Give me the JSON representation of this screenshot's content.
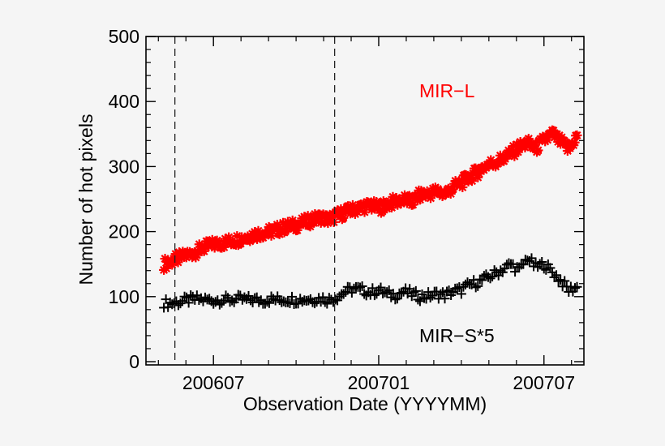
{
  "chart_data": {
    "type": "scatter",
    "title": "",
    "xlabel": "Observation Date (YYYYMM)",
    "ylabel": "Number of hot pixels",
    "x_units": "months since 2006-01",
    "xlim": [
      3.55,
      19.45
    ],
    "ylim": [
      -5,
      500
    ],
    "x_ticks": [
      {
        "value": 6,
        "label": "200607"
      },
      {
        "value": 12,
        "label": "200701"
      },
      {
        "value": 18,
        "label": "200707"
      }
    ],
    "y_ticks": [
      {
        "value": 0,
        "label": "0"
      },
      {
        "value": 100,
        "label": "100"
      },
      {
        "value": 200,
        "label": "200"
      },
      {
        "value": 300,
        "label": "300"
      },
      {
        "value": 400,
        "label": "400"
      },
      {
        "value": 500,
        "label": "500"
      }
    ],
    "vertical_lines": [
      4.6,
      10.4
    ],
    "series": [
      {
        "name": "MIR-L",
        "marker": "asterisk",
        "color": "#ff0000",
        "label_text": "MIR−L",
        "x": [
          4.2,
          4.5,
          4.8,
          5.1,
          5.4,
          5.7,
          6.0,
          6.3,
          6.6,
          6.9,
          7.2,
          7.5,
          7.8,
          8.1,
          8.4,
          8.7,
          9.0,
          9.3,
          9.6,
          9.9,
          10.2,
          10.5,
          10.8,
          11.1,
          11.4,
          11.7,
          12.0,
          12.3,
          12.6,
          12.9,
          13.2,
          13.5,
          13.8,
          14.1,
          14.4,
          14.7,
          15.0,
          15.3,
          15.6,
          15.9,
          16.2,
          16.5,
          16.8,
          17.1,
          17.4,
          17.7,
          18.0,
          18.3,
          18.6,
          18.9,
          19.2
        ],
        "values": [
          150,
          155,
          160,
          165,
          170,
          176,
          180,
          182,
          185,
          188,
          192,
          196,
          198,
          200,
          204,
          208,
          210,
          214,
          218,
          222,
          218,
          225,
          230,
          234,
          238,
          240,
          236,
          242,
          246,
          250,
          245,
          256,
          258,
          262,
          258,
          268,
          275,
          284,
          292,
          302,
          306,
          312,
          320,
          330,
          336,
          328,
          340,
          350,
          338,
          326,
          348
        ]
      },
      {
        "name": "MIR-S*5",
        "marker": "plus",
        "color": "#000000",
        "label_text": "MIR−S*5",
        "x": [
          4.2,
          4.5,
          4.8,
          5.1,
          5.4,
          5.7,
          6.0,
          6.3,
          6.6,
          6.9,
          7.2,
          7.5,
          7.8,
          8.1,
          8.4,
          8.7,
          9.0,
          9.3,
          9.6,
          9.9,
          10.2,
          10.5,
          10.8,
          11.1,
          11.4,
          11.7,
          12.0,
          12.3,
          12.6,
          12.9,
          13.2,
          13.5,
          13.8,
          14.1,
          14.4,
          14.7,
          15.0,
          15.3,
          15.6,
          15.9,
          16.2,
          16.5,
          16.8,
          17.1,
          17.4,
          17.7,
          18.0,
          18.3,
          18.6,
          18.9,
          19.2
        ],
        "values": [
          90,
          90,
          92,
          95,
          96,
          95,
          94,
          95,
          95,
          96,
          95,
          95,
          94,
          96,
          95,
          96,
          95,
          96,
          96,
          97,
          95,
          100,
          108,
          112,
          110,
          106,
          110,
          104,
          102,
          108,
          104,
          100,
          101,
          104,
          102,
          108,
          110,
          118,
          122,
          128,
          135,
          142,
          150,
          140,
          160,
          145,
          150,
          138,
          125,
          110,
          115
        ]
      }
    ]
  }
}
